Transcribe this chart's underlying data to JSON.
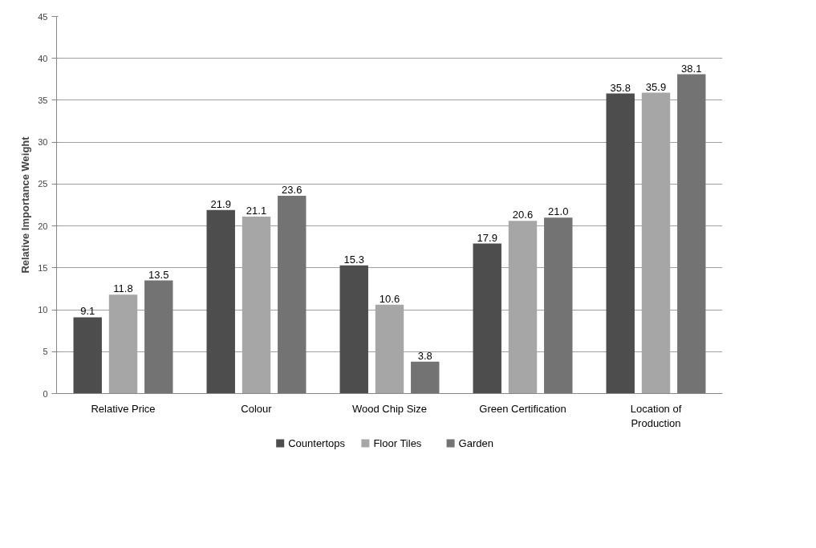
{
  "chart_data": {
    "type": "bar",
    "ylabel": "Relative Importance Weight",
    "categories": [
      "Relative Price",
      "Colour",
      "Wood Chip Size",
      "Green Certification",
      "Location of Production"
    ],
    "series": [
      {
        "name": "Countertops",
        "color": "#4d4d4d",
        "values": [
          9.1,
          21.9,
          15.3,
          17.9,
          35.8
        ],
        "value_labels": [
          "9.1",
          "21.9",
          "15.3",
          "17.9",
          "35.8"
        ]
      },
      {
        "name": "Floor Tiles",
        "color": "#a6a6a6",
        "values": [
          11.8,
          21.1,
          10.6,
          20.6,
          35.9
        ],
        "value_labels": [
          "11.8",
          "21.1",
          "10.6",
          "20.6",
          "35.9"
        ]
      },
      {
        "name": "Garden",
        "color": "#737373",
        "values": [
          13.5,
          23.6,
          3.8,
          21.0,
          38.1
        ],
        "value_labels": [
          "13.5",
          "23.6",
          "3.8",
          "21.0",
          "38.1"
        ]
      }
    ],
    "ylim": [
      0,
      45
    ],
    "yticks": [
      0,
      5,
      10,
      15,
      20,
      25,
      30,
      35,
      40,
      45
    ],
    "grid": "y",
    "legend": "bottom",
    "data_labels": true
  }
}
